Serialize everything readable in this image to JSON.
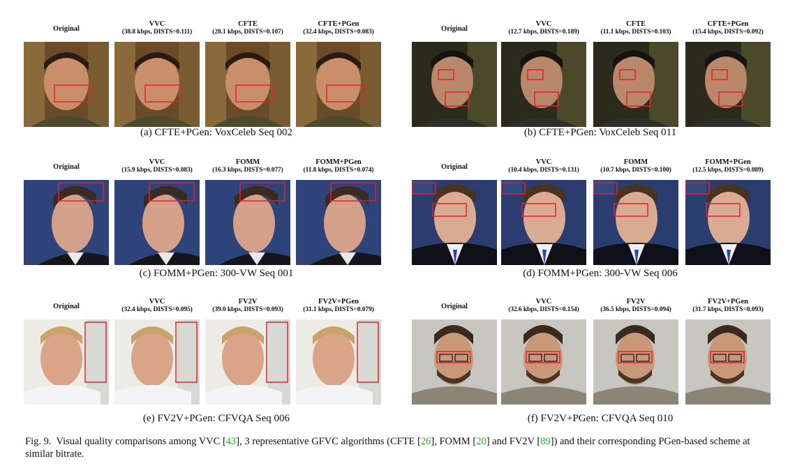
{
  "figure": {
    "caption_label": "Fig. 9.",
    "caption_parts": [
      {
        "text": "Visual quality comparisons among VVC [",
        "ref": false
      },
      {
        "text": "43",
        "ref": true
      },
      {
        "text": "], 3 representative GFVC algorithms (CFTE [",
        "ref": false
      },
      {
        "text": "26",
        "ref": true
      },
      {
        "text": "], FOMM [",
        "ref": false
      },
      {
        "text": "20",
        "ref": true
      },
      {
        "text": "] and FV2V [",
        "ref": false
      },
      {
        "text": "89",
        "ref": true
      },
      {
        "text": "]) and their corresponding PGen-based scheme at similar bitrate.",
        "ref": false
      }
    ]
  },
  "panels": [
    {
      "caption": "(a) CFTE+PGen: VoxCeleb Seq 002",
      "columns": [
        {
          "method": "Original",
          "stats": ""
        },
        {
          "method": "VVC",
          "stats": "(38.8 kbps, DISTS=0.111)"
        },
        {
          "method": "CFTE",
          "stats": "(28.1 kbps, DISTS=0.107)"
        },
        {
          "method": "CFTE+PGen",
          "stats": "(32.4 kbps, DISTS=0.083)"
        }
      ]
    },
    {
      "caption": "(b) CFTE+PGen: VoxCeleb Seq 011",
      "columns": [
        {
          "method": "Original",
          "stats": ""
        },
        {
          "method": "VVC",
          "stats": "(12.7 kbps, DISTS=0.189)"
        },
        {
          "method": "CFTE",
          "stats": "(11.1 kbps, DISTS=0.103)"
        },
        {
          "method": "CFTE+PGen",
          "stats": "(15.4 kbps, DISTS=0.092)"
        }
      ]
    },
    {
      "caption": "(c) FOMM+PGen: 300-VW Seq 001",
      "columns": [
        {
          "method": "Original",
          "stats": ""
        },
        {
          "method": "VVC",
          "stats": "(15.9 kbps, DISTS=0.083)"
        },
        {
          "method": "FOMM",
          "stats": "(16.3 kbps, DISTS=0.077)"
        },
        {
          "method": "FOMM+PGen",
          "stats": "(11.8 kbps, DISTS=0.074)"
        }
      ]
    },
    {
      "caption": "(d) FOMM+PGen: 300-VW Seq 006",
      "columns": [
        {
          "method": "Original",
          "stats": ""
        },
        {
          "method": "VVC",
          "stats": "(10.4 kbps, DISTS=0.131)"
        },
        {
          "method": "FOMM",
          "stats": "(10.7 kbps, DISTS=0.100)"
        },
        {
          "method": "FOMM+PGen",
          "stats": "(12.5 kbps, DISTS=0.089)"
        }
      ]
    },
    {
      "caption": "(e) FV2V+PGen: CFVQA Seq 006",
      "columns": [
        {
          "method": "Original",
          "stats": ""
        },
        {
          "method": "VVC",
          "stats": "(32.4 kbps, DISTS=0.095)"
        },
        {
          "method": "FV2V",
          "stats": "(39.0 kbps, DISTS=0.093)"
        },
        {
          "method": "FV2V+PGen",
          "stats": "(31.1 kbps, DISTS=0.079)"
        }
      ]
    },
    {
      "caption": "(f) FV2V+PGen: CFVQA Seq 010",
      "columns": [
        {
          "method": "Original",
          "stats": ""
        },
        {
          "method": "VVC",
          "stats": "(32.6 kbps, DISTS=0.154)"
        },
        {
          "method": "FV2V",
          "stats": "(36.5 kbps, DISTS=0.094)"
        },
        {
          "method": "FV2V+PGen",
          "stats": "(31.7 kbps, DISTS=0.093)"
        }
      ]
    }
  ],
  "colors": {
    "highlight_box": "#e8202a",
    "reference_link": "#22b022"
  }
}
